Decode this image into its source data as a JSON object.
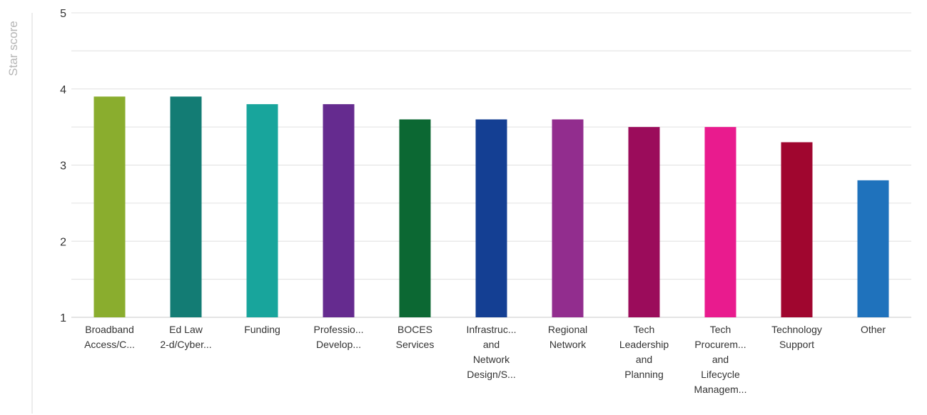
{
  "chart_data": {
    "type": "bar",
    "ylabel": "Star score",
    "ylim": [
      1,
      5
    ],
    "yticks": [
      1,
      2,
      3,
      4,
      5
    ],
    "grid": true,
    "categories": [
      [
        "Broadband",
        "Access/C..."
      ],
      [
        "Ed Law",
        "2-d/Cyber..."
      ],
      [
        "Funding"
      ],
      [
        "Professio...",
        "Develop..."
      ],
      [
        "BOCES",
        "Services"
      ],
      [
        "Infrastruc...",
        "and",
        "Network",
        "Design/S..."
      ],
      [
        "Regional",
        "Network"
      ],
      [
        "Tech",
        "Leadership",
        "and",
        "Planning"
      ],
      [
        "Tech",
        "Procurem...",
        "and",
        "Lifecycle",
        "Managem..."
      ],
      [
        "Technology",
        "Support"
      ],
      [
        "Other"
      ]
    ],
    "values": [
      3.9,
      3.9,
      3.8,
      3.8,
      3.6,
      3.6,
      3.6,
      3.5,
      3.5,
      3.3,
      2.8
    ],
    "colors": [
      "#8aad2e",
      "#137c74",
      "#18a59c",
      "#652b8f",
      "#0c6833",
      "#143f93",
      "#922d8e",
      "#9b0c5b",
      "#e91b8e",
      "#a0062f",
      "#1f72bc"
    ]
  }
}
